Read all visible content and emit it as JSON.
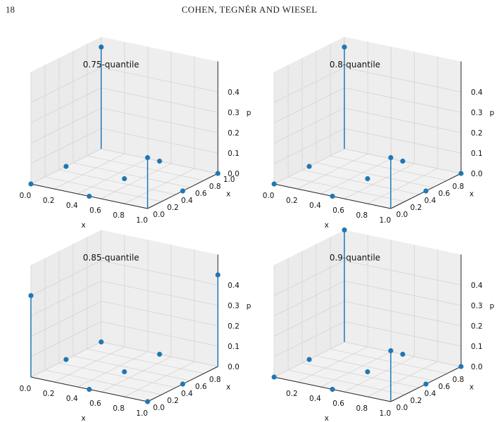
{
  "header": {
    "page_number": "18",
    "running_head": "COHEN, TEGNÉR AND WIESEL"
  },
  "colors": {
    "marker": "#1f77b4",
    "pane": "#f2f2f2",
    "grid": "#d4d4d4",
    "axis": "#222222"
  },
  "chart_data": [
    {
      "type": "scatter3d-stem",
      "title": "0.75-quantile",
      "xlabel": "x",
      "ylabel": "x",
      "zlabel": "p",
      "xlim": [
        0,
        1
      ],
      "ylim": [
        0,
        1
      ],
      "zlim": [
        0,
        0.5
      ],
      "xticks": [
        "0.0",
        "0.2",
        "0.4",
        "0.6",
        "0.8",
        "1.0"
      ],
      "yticks": [
        "0.0",
        "0.2",
        "0.4",
        "0.6",
        "0.8",
        "1.0"
      ],
      "zticks": [
        "0.0",
        "0.1",
        "0.2",
        "0.3",
        "0.4"
      ],
      "points": [
        {
          "x": 0.0,
          "y": 0.0,
          "p": 0.0
        },
        {
          "x": 0.0,
          "y": 0.5,
          "p": 0.0
        },
        {
          "x": 0.0,
          "y": 1.0,
          "p": 0.5
        },
        {
          "x": 0.5,
          "y": 0.0,
          "p": 0.0
        },
        {
          "x": 0.5,
          "y": 0.5,
          "p": 0.0
        },
        {
          "x": 0.5,
          "y": 1.0,
          "p": 0.0
        },
        {
          "x": 1.0,
          "y": 0.0,
          "p": 0.25
        },
        {
          "x": 1.0,
          "y": 0.5,
          "p": 0.0
        },
        {
          "x": 1.0,
          "y": 1.0,
          "p": 0.0
        }
      ]
    },
    {
      "type": "scatter3d-stem",
      "title": "0.8-quantile",
      "xlabel": "x",
      "ylabel": "x",
      "zlabel": "p",
      "xlim": [
        0,
        1
      ],
      "ylim": [
        0,
        1
      ],
      "zlim": [
        0,
        0.5
      ],
      "xticks": [
        "0.0",
        "0.2",
        "0.4",
        "0.6",
        "0.8",
        "1.0"
      ],
      "yticks": [
        "0.0",
        "0.2",
        "0.4",
        "0.6",
        "0.8"
      ],
      "zticks": [
        "0.0",
        "0.1",
        "0.2",
        "0.3",
        "0.4"
      ],
      "points": [
        {
          "x": 0.0,
          "y": 0.0,
          "p": 0.0
        },
        {
          "x": 0.0,
          "y": 0.5,
          "p": 0.0
        },
        {
          "x": 0.0,
          "y": 1.0,
          "p": 0.5
        },
        {
          "x": 0.5,
          "y": 0.0,
          "p": 0.0
        },
        {
          "x": 0.5,
          "y": 0.5,
          "p": 0.0
        },
        {
          "x": 0.5,
          "y": 1.0,
          "p": 0.0
        },
        {
          "x": 1.0,
          "y": 0.0,
          "p": 0.25
        },
        {
          "x": 1.0,
          "y": 0.5,
          "p": 0.0
        },
        {
          "x": 1.0,
          "y": 1.0,
          "p": 0.0
        }
      ]
    },
    {
      "type": "scatter3d-stem",
      "title": "0.85-quantile",
      "xlabel": "x",
      "ylabel": "x",
      "zlabel": "p",
      "xlim": [
        0,
        1
      ],
      "ylim": [
        0,
        1
      ],
      "zlim": [
        0,
        0.5
      ],
      "xticks": [
        "0.0",
        "0.2",
        "0.4",
        "0.6",
        "0.8",
        "1.0"
      ],
      "yticks": [
        "0.0",
        "0.2",
        "0.4",
        "0.6",
        "0.8"
      ],
      "zticks": [
        "0.0",
        "0.1",
        "0.2",
        "0.3",
        "0.4"
      ],
      "points": [
        {
          "x": 0.0,
          "y": 0.0,
          "p": 0.4
        },
        {
          "x": 0.0,
          "y": 0.5,
          "p": 0.0
        },
        {
          "x": 0.0,
          "y": 1.0,
          "p": 0.0
        },
        {
          "x": 0.5,
          "y": 0.0,
          "p": 0.0
        },
        {
          "x": 0.5,
          "y": 0.5,
          "p": 0.0
        },
        {
          "x": 0.5,
          "y": 1.0,
          "p": 0.0
        },
        {
          "x": 1.0,
          "y": 0.0,
          "p": 0.0
        },
        {
          "x": 1.0,
          "y": 0.5,
          "p": 0.0
        },
        {
          "x": 1.0,
          "y": 1.0,
          "p": 0.45
        }
      ]
    },
    {
      "type": "scatter3d-stem",
      "title": "0.9-quantile",
      "xlabel": "x",
      "ylabel": "x",
      "zlabel": "p",
      "xlim": [
        0,
        1
      ],
      "ylim": [
        0,
        1
      ],
      "zlim": [
        0,
        0.5
      ],
      "xticks": [
        "0.2",
        "0.4",
        "0.6",
        "0.8",
        "1.0"
      ],
      "yticks": [
        "0.0",
        "0.2",
        "0.4",
        "0.6",
        "0.8"
      ],
      "zticks": [
        "0.0",
        "0.1",
        "0.2",
        "0.3",
        "0.4"
      ],
      "points": [
        {
          "x": 0.0,
          "y": 0.0,
          "p": 0.0
        },
        {
          "x": 0.0,
          "y": 0.5,
          "p": 0.0
        },
        {
          "x": 0.0,
          "y": 1.0,
          "p": 0.55
        },
        {
          "x": 0.5,
          "y": 0.0,
          "p": 0.0
        },
        {
          "x": 0.5,
          "y": 0.5,
          "p": 0.0
        },
        {
          "x": 0.5,
          "y": 1.0,
          "p": 0.0
        },
        {
          "x": 1.0,
          "y": 0.0,
          "p": 0.25
        },
        {
          "x": 1.0,
          "y": 0.5,
          "p": 0.0
        },
        {
          "x": 1.0,
          "y": 1.0,
          "p": 0.0
        }
      ]
    }
  ]
}
